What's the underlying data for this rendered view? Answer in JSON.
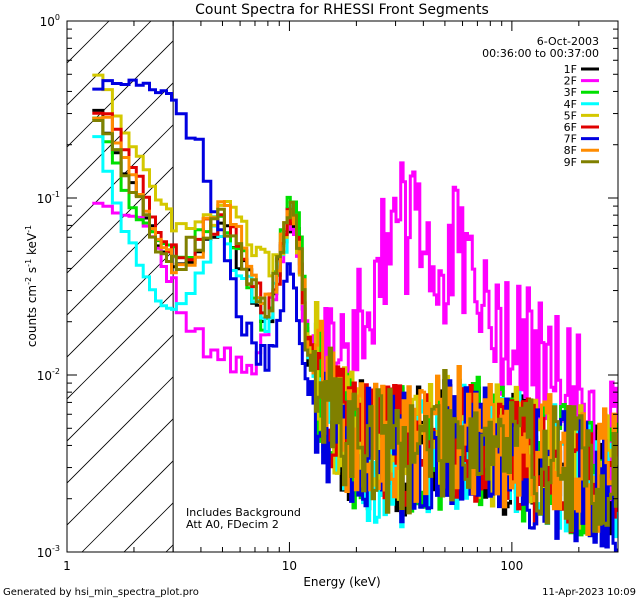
{
  "chart_data": {
    "type": "line",
    "title": "Count Spectra for RHESSI Front Segments",
    "xlabel": "Energy (keV)",
    "ylabel_parts": {
      "base": "counts cm",
      "e1": "-2",
      "mid1": " s",
      "e2": "-1",
      "mid2": " keV",
      "e3": "-1"
    },
    "x_scale": "log",
    "y_scale": "log",
    "xlim": [
      1,
      300
    ],
    "ylim": [
      0.001,
      1
    ],
    "x_ticks": [
      {
        "value": 1,
        "label": "1"
      },
      {
        "value": 10,
        "label": "10"
      },
      {
        "value": 100,
        "label": "100"
      }
    ],
    "y_ticks": [
      {
        "value": 1,
        "base": "10",
        "exp": "0"
      },
      {
        "value": 0.1,
        "base": "10",
        "exp": "-1"
      },
      {
        "value": 0.01,
        "base": "10",
        "exp": "-2"
      },
      {
        "value": 0.001,
        "base": "10",
        "exp": "-3"
      }
    ],
    "legend": {
      "position": "top-right",
      "date": "6-Oct-2003",
      "time_range": "00:36:00 to 00:37:00"
    },
    "annotations": [
      "Includes Background",
      "Att A0, FDecim 2"
    ],
    "hatched_region_keV": [
      1,
      3
    ],
    "series": [
      {
        "name": "1F",
        "color": "#000000",
        "seed": 11,
        "x": [
          1.3,
          1.5,
          1.8,
          2.2,
          2.6,
          3,
          3.5,
          4,
          4.5,
          5,
          6,
          7,
          8,
          9,
          10,
          10.5,
          11.2,
          12,
          14,
          17,
          20,
          25,
          30,
          40,
          50,
          60,
          80,
          100,
          130,
          160,
          200,
          250,
          280
        ],
        "y": [
          0.38,
          0.25,
          0.15,
          0.09,
          0.055,
          0.045,
          0.045,
          0.05,
          0.06,
          0.075,
          0.045,
          0.03,
          0.02,
          0.04,
          0.075,
          0.08,
          0.05,
          0.014,
          0.008,
          0.005,
          0.004,
          0.0038,
          0.0036,
          0.0038,
          0.0042,
          0.0045,
          0.004,
          0.0038,
          0.0034,
          0.0032,
          0.003,
          0.0028,
          0.0025
        ]
      },
      {
        "name": "2F",
        "color": "#ff00ff",
        "seed": 12,
        "x": [
          1.3,
          1.5,
          1.8,
          2.2,
          2.6,
          3,
          3.5,
          4,
          4.5,
          5,
          6,
          7,
          8,
          9,
          10,
          10.5,
          11.2,
          12,
          14,
          17,
          20,
          23,
          25,
          28,
          30,
          35,
          40,
          45,
          50,
          55,
          58,
          62,
          70,
          80,
          90,
          100,
          120,
          140,
          160,
          190,
          220,
          250,
          280
        ],
        "y": [
          0.1,
          0.092,
          0.085,
          0.075,
          0.05,
          0.03,
          0.02,
          0.016,
          0.014,
          0.012,
          0.011,
          0.012,
          0.02,
          0.04,
          0.065,
          0.06,
          0.035,
          0.017,
          0.013,
          0.012,
          0.017,
          0.03,
          0.045,
          0.06,
          0.07,
          0.065,
          0.055,
          0.045,
          0.04,
          0.05,
          0.048,
          0.035,
          0.025,
          0.02,
          0.018,
          0.017,
          0.013,
          0.011,
          0.009,
          0.008,
          0.007,
          0.0055,
          0.0045
        ]
      },
      {
        "name": "3F",
        "color": "#00e000",
        "seed": 13,
        "x": [
          1.3,
          1.5,
          1.8,
          2.2,
          2.6,
          3,
          3.5,
          4,
          4.5,
          5,
          6,
          7,
          8,
          9,
          10,
          10.5,
          11.2,
          12,
          14,
          17,
          20,
          25,
          30,
          40,
          50,
          60,
          80,
          100,
          130,
          160,
          200,
          250,
          280
        ],
        "y": [
          0.35,
          0.22,
          0.12,
          0.07,
          0.06,
          0.05,
          0.05,
          0.055,
          0.07,
          0.08,
          0.05,
          0.03,
          0.018,
          0.045,
          0.09,
          0.12,
          0.06,
          0.016,
          0.008,
          0.005,
          0.004,
          0.0038,
          0.0036,
          0.0038,
          0.0042,
          0.0045,
          0.004,
          0.0037,
          0.0033,
          0.003,
          0.0028,
          0.0026,
          0.0024
        ]
      },
      {
        "name": "4F",
        "color": "#00ffff",
        "seed": 14,
        "x": [
          1.3,
          1.5,
          1.8,
          2.2,
          2.6,
          3,
          3.5,
          4,
          4.5,
          5,
          6,
          7,
          8,
          9,
          10,
          10.5,
          11.2,
          12,
          14,
          17,
          20,
          25,
          30,
          40,
          50,
          60,
          80,
          100,
          130,
          160,
          200,
          250,
          280
        ],
        "y": [
          0.3,
          0.15,
          0.07,
          0.04,
          0.025,
          0.025,
          0.03,
          0.045,
          0.06,
          0.06,
          0.04,
          0.028,
          0.018,
          0.04,
          0.07,
          0.085,
          0.045,
          0.013,
          0.007,
          0.0045,
          0.0036,
          0.0034,
          0.0032,
          0.0035,
          0.004,
          0.0042,
          0.0038,
          0.0035,
          0.0031,
          0.0029,
          0.0027,
          0.0025,
          0.0023
        ]
      },
      {
        "name": "5F",
        "color": "#d4c800",
        "seed": 15,
        "x": [
          1.3,
          1.5,
          1.8,
          2.2,
          2.6,
          3,
          3.5,
          4,
          4.5,
          5,
          6,
          7,
          8,
          9,
          10,
          10.5,
          11.2,
          12,
          14,
          17,
          20,
          25,
          30,
          40,
          50,
          60,
          80,
          100,
          130,
          160,
          200,
          250,
          280
        ],
        "y": [
          0.58,
          0.42,
          0.25,
          0.15,
          0.1,
          0.08,
          0.078,
          0.075,
          0.085,
          0.09,
          0.065,
          0.05,
          0.04,
          0.05,
          0.075,
          0.07,
          0.04,
          0.016,
          0.009,
          0.0055,
          0.0045,
          0.004,
          0.0038,
          0.004,
          0.0044,
          0.0046,
          0.0041,
          0.0038,
          0.0034,
          0.0031,
          0.0029,
          0.0027,
          0.0025
        ]
      },
      {
        "name": "6F",
        "color": "#e00000",
        "seed": 16,
        "x": [
          1.3,
          1.5,
          1.8,
          2.2,
          2.6,
          3,
          3.5,
          4,
          4.5,
          5,
          6,
          7,
          8,
          9,
          10,
          10.5,
          11.2,
          12,
          14,
          17,
          20,
          25,
          30,
          40,
          50,
          60,
          80,
          100,
          130,
          160,
          200,
          250,
          280
        ],
        "y": [
          0.32,
          0.3,
          0.2,
          0.12,
          0.06,
          0.05,
          0.052,
          0.055,
          0.07,
          0.08,
          0.05,
          0.032,
          0.02,
          0.042,
          0.08,
          0.09,
          0.05,
          0.015,
          0.008,
          0.005,
          0.0042,
          0.004,
          0.0038,
          0.004,
          0.0043,
          0.0046,
          0.0041,
          0.0038,
          0.0034,
          0.0031,
          0.0029,
          0.0027,
          0.0025
        ]
      },
      {
        "name": "7F",
        "color": "#0000e0",
        "seed": 17,
        "x": [
          1.3,
          1.5,
          1.8,
          2,
          2.2,
          2.5,
          3,
          3.3,
          3.6,
          4,
          4.5,
          5,
          5.5,
          6,
          7,
          8,
          9,
          9.5,
          10,
          10.5,
          11.2,
          12,
          14,
          17,
          20,
          25,
          30,
          40,
          50,
          60,
          80,
          100,
          130,
          160,
          200,
          250,
          280
        ],
        "y": [
          0.42,
          0.44,
          0.45,
          0.45,
          0.44,
          0.42,
          0.38,
          0.33,
          0.26,
          0.17,
          0.1,
          0.06,
          0.035,
          0.022,
          0.015,
          0.012,
          0.02,
          0.03,
          0.04,
          0.03,
          0.018,
          0.01,
          0.006,
          0.0045,
          0.0038,
          0.0035,
          0.0033,
          0.0035,
          0.0039,
          0.0041,
          0.0037,
          0.0034,
          0.003,
          0.0028,
          0.0026,
          0.0024,
          0.0022
        ]
      },
      {
        "name": "8F",
        "color": "#ff8c00",
        "seed": 18,
        "x": [
          1.3,
          1.5,
          1.8,
          2.2,
          2.6,
          3,
          3.5,
          4,
          4.5,
          5,
          6,
          7,
          8,
          9,
          10,
          10.5,
          11.2,
          12,
          14,
          17,
          20,
          25,
          30,
          40,
          50,
          60,
          80,
          100,
          130,
          160,
          200,
          250,
          280
        ],
        "y": [
          0.3,
          0.28,
          0.18,
          0.1,
          0.055,
          0.045,
          0.05,
          0.055,
          0.075,
          0.095,
          0.055,
          0.035,
          0.025,
          0.045,
          0.08,
          0.09,
          0.05,
          0.016,
          0.009,
          0.0055,
          0.0045,
          0.0042,
          0.004,
          0.0043,
          0.0046,
          0.0049,
          0.0044,
          0.004,
          0.0036,
          0.0033,
          0.003,
          0.0028,
          0.0026
        ]
      },
      {
        "name": "9F",
        "color": "#808000",
        "seed": 19,
        "x": [
          1.3,
          1.5,
          1.8,
          2.2,
          2.6,
          3,
          3.5,
          4,
          4.5,
          5,
          6,
          7,
          8,
          9,
          10,
          10.5,
          11.2,
          12,
          14,
          17,
          20,
          25,
          30,
          40,
          50,
          60,
          80,
          100,
          130,
          160,
          200,
          250,
          280
        ],
        "y": [
          0.3,
          0.26,
          0.14,
          0.09,
          0.05,
          0.042,
          0.048,
          0.055,
          0.07,
          0.085,
          0.05,
          0.032,
          0.022,
          0.042,
          0.075,
          0.085,
          0.048,
          0.015,
          0.008,
          0.005,
          0.0042,
          0.004,
          0.0038,
          0.0041,
          0.0045,
          0.0047,
          0.0042,
          0.0039,
          0.0035,
          0.0032,
          0.003,
          0.0028,
          0.0025
        ]
      }
    ]
  },
  "footer": {
    "generated_by": "Generated by hsi_min_spectra_plot.pro",
    "timestamp": "11-Apr-2023 10:09"
  }
}
